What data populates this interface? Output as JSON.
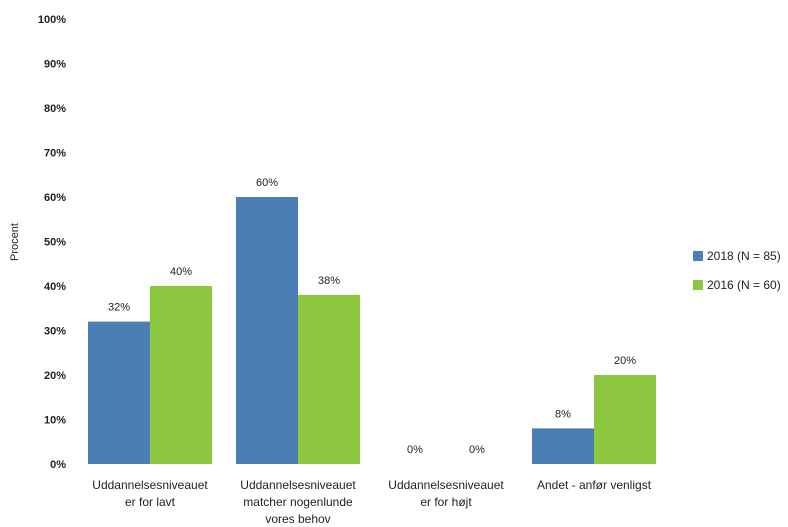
{
  "chart_data": {
    "type": "bar",
    "ylabel": "Procent",
    "ylim": [
      0,
      100
    ],
    "y_ticks": [
      "0%",
      "10%",
      "20%",
      "30%",
      "40%",
      "50%",
      "60%",
      "70%",
      "80%",
      "90%",
      "100%"
    ],
    "y_tick_values": [
      0,
      10,
      20,
      30,
      40,
      50,
      60,
      70,
      80,
      90,
      100
    ],
    "categories": [
      [
        "Uddannelsesniveauet",
        "er for lavt"
      ],
      [
        "Uddannelsesniveauet",
        "matcher nogenlunde",
        "vores behov"
      ],
      [
        "Uddannelsesniveauet",
        "er for højt"
      ],
      [
        "Andet - anfør venligst"
      ]
    ],
    "series": [
      {
        "name": "2018 (N = 85)",
        "color": "#4a7eb5",
        "values": [
          32,
          60,
          0,
          8
        ],
        "labels": [
          "32%",
          "60%",
          "0%",
          "8%"
        ]
      },
      {
        "name": "2016 (N = 60)",
        "color": "#8dc63f",
        "values": [
          40,
          38,
          0,
          20
        ],
        "labels": [
          "40%",
          "38%",
          "0%",
          "20%"
        ]
      }
    ],
    "grid": false,
    "legend_position": "right"
  }
}
